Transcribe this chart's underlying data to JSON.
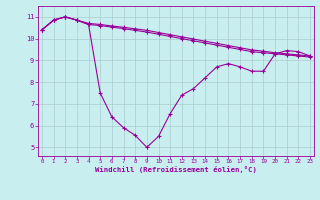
{
  "title": "",
  "xlabel": "Windchill (Refroidissement éolien,°C)",
  "ylabel": "",
  "bg_color": "#c8eef0",
  "line_color": "#990099",
  "grid_color": "#aacccc",
  "xticks": [
    0,
    1,
    2,
    3,
    4,
    5,
    6,
    7,
    8,
    9,
    10,
    11,
    12,
    13,
    14,
    15,
    16,
    17,
    18,
    19,
    20,
    21,
    22,
    23
  ],
  "yticks": [
    5,
    6,
    7,
    8,
    9,
    10,
    11
  ],
  "xlim": [
    -0.3,
    23.3
  ],
  "ylim": [
    4.6,
    11.5
  ],
  "line1_x": [
    0,
    1,
    2,
    3,
    4,
    5,
    6,
    7,
    8,
    9,
    10,
    11,
    12,
    13,
    14,
    15,
    16,
    17,
    18,
    19,
    20,
    21,
    22,
    23
  ],
  "line1_y": [
    10.4,
    10.85,
    11.0,
    10.85,
    10.7,
    10.65,
    10.58,
    10.52,
    10.45,
    10.38,
    10.28,
    10.18,
    10.08,
    9.98,
    9.88,
    9.78,
    9.68,
    9.58,
    9.48,
    9.42,
    9.35,
    9.3,
    9.25,
    9.2
  ],
  "line2_x": [
    0,
    1,
    2,
    3,
    4,
    5,
    6,
    7,
    8,
    9,
    10,
    11,
    12,
    13,
    14,
    15,
    16,
    17,
    18,
    19,
    20,
    21,
    22,
    23
  ],
  "line2_y": [
    10.4,
    10.85,
    11.0,
    10.85,
    10.65,
    10.6,
    10.53,
    10.46,
    10.38,
    10.3,
    10.2,
    10.1,
    10.0,
    9.9,
    9.8,
    9.7,
    9.6,
    9.5,
    9.4,
    9.35,
    9.3,
    9.25,
    9.2,
    9.15
  ],
  "line3_x": [
    0,
    1,
    2,
    3,
    4,
    5,
    6,
    7,
    8,
    9,
    10,
    11,
    12,
    13,
    14,
    15,
    16,
    17,
    18,
    19,
    20,
    21,
    22,
    23
  ],
  "line3_y": [
    10.4,
    10.85,
    11.0,
    10.85,
    10.65,
    7.5,
    6.4,
    5.9,
    5.55,
    5.0,
    5.5,
    6.55,
    7.4,
    7.7,
    8.2,
    8.7,
    8.85,
    8.7,
    8.5,
    8.5,
    9.3,
    9.45,
    9.4,
    9.2
  ]
}
